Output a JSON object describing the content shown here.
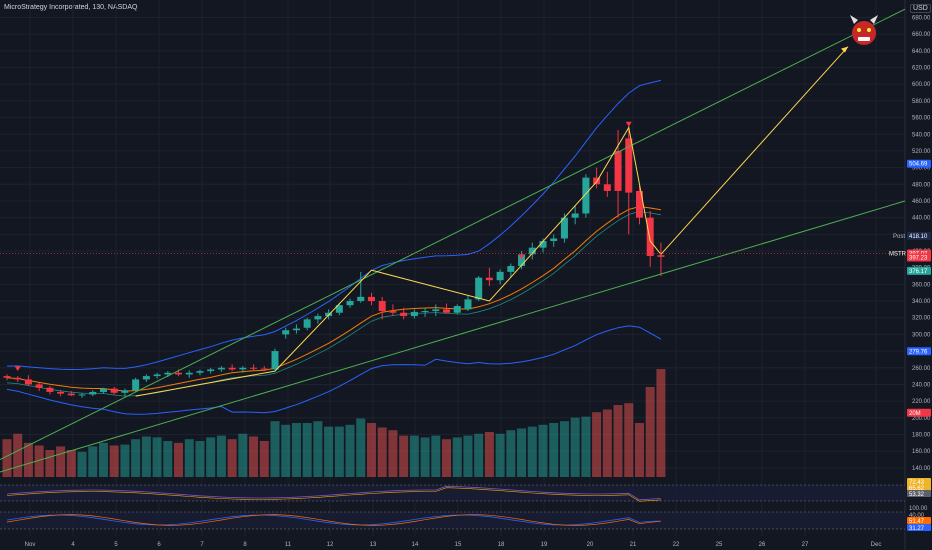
{
  "header": {
    "title": "MicroStrategy Incorporated, 130, NASDAQ",
    "currency": "USD"
  },
  "chart_data": {
    "type": "candlestick",
    "x_ticks": [
      "Nov",
      "4",
      "5",
      "6",
      "7",
      "8",
      "11",
      "12",
      "13",
      "14",
      "15",
      "18",
      "19",
      "20",
      "21",
      "22",
      "25",
      "26",
      "27",
      "Dec"
    ],
    "y_ticks": [
      140,
      160,
      180,
      200,
      220,
      240,
      260,
      280,
      300,
      320,
      340,
      360,
      380,
      400,
      420,
      440,
      460,
      480,
      500,
      520,
      540,
      560,
      580,
      600,
      620,
      640,
      660,
      680
    ],
    "ylim": [
      125,
      690
    ],
    "candles": [
      [
        250,
        252,
        245,
        248
      ],
      [
        248,
        250,
        243,
        246
      ],
      [
        246,
        251,
        238,
        240
      ],
      [
        240,
        242,
        232,
        236
      ],
      [
        236,
        238,
        228,
        231
      ],
      [
        231,
        233,
        226,
        229
      ],
      [
        229,
        232,
        226,
        227
      ],
      [
        227,
        230,
        224,
        228
      ],
      [
        228,
        233,
        226,
        231
      ],
      [
        231,
        236,
        229,
        235
      ],
      [
        235,
        237,
        228,
        230
      ],
      [
        230,
        235,
        226,
        233
      ],
      [
        233,
        248,
        231,
        246
      ],
      [
        246,
        252,
        243,
        250
      ],
      [
        250,
        254,
        247,
        252
      ],
      [
        252,
        256,
        249,
        254
      ],
      [
        254,
        258,
        250,
        252
      ],
      [
        252,
        257,
        248,
        254
      ],
      [
        254,
        258,
        251,
        256
      ],
      [
        256,
        260,
        253,
        258
      ],
      [
        258,
        262,
        255,
        260
      ],
      [
        260,
        264,
        256,
        258
      ],
      [
        258,
        262,
        254,
        260
      ],
      [
        260,
        264,
        257,
        259
      ],
      [
        259,
        262,
        256,
        258
      ],
      [
        258,
        283,
        257,
        280
      ],
      [
        300,
        308,
        295,
        305
      ],
      [
        305,
        312,
        301,
        307
      ],
      [
        308,
        320,
        305,
        318
      ],
      [
        318,
        325,
        313,
        322
      ],
      [
        322,
        330,
        318,
        326
      ],
      [
        326,
        338,
        323,
        335
      ],
      [
        335,
        343,
        332,
        340
      ],
      [
        340,
        375,
        338,
        345
      ],
      [
        345,
        350,
        335,
        340
      ],
      [
        340,
        345,
        318,
        328
      ],
      [
        328,
        336,
        322,
        326
      ],
      [
        326,
        332,
        318,
        322
      ],
      [
        322,
        330,
        319,
        327
      ],
      [
        327,
        332,
        321,
        328
      ],
      [
        328,
        336,
        322,
        330
      ],
      [
        330,
        337,
        325,
        326
      ],
      [
        326,
        336,
        324,
        334
      ],
      [
        330,
        346,
        328,
        342
      ],
      [
        342,
        370,
        340,
        368
      ],
      [
        368,
        380,
        358,
        365
      ],
      [
        365,
        378,
        360,
        375
      ],
      [
        375,
        385,
        368,
        382
      ],
      [
        382,
        400,
        378,
        396
      ],
      [
        396,
        410,
        390,
        404
      ],
      [
        404,
        415,
        398,
        412
      ],
      [
        412,
        420,
        405,
        415
      ],
      [
        415,
        445,
        410,
        440
      ],
      [
        440,
        455,
        432,
        445
      ],
      [
        445,
        492,
        440,
        488
      ],
      [
        488,
        500,
        475,
        480
      ],
      [
        480,
        495,
        465,
        472
      ],
      [
        520,
        545,
        440,
        472
      ],
      [
        535,
        552,
        420,
        470
      ],
      [
        472,
        478,
        432,
        440
      ],
      [
        440,
        448,
        381,
        394
      ],
      [
        395,
        410,
        370,
        393
      ]
    ],
    "volume": [
      42,
      48,
      38,
      35,
      30,
      34,
      30,
      28,
      34,
      38,
      35,
      36,
      42,
      45,
      44,
      40,
      38,
      42,
      40,
      44,
      46,
      42,
      48,
      45,
      40,
      62,
      58,
      60,
      60,
      62,
      56,
      56,
      58,
      65,
      60,
      55,
      52,
      46,
      46,
      44,
      46,
      42,
      44,
      46,
      48,
      50,
      48,
      52,
      54,
      56,
      58,
      60,
      62,
      66,
      67,
      72,
      75,
      80,
      82,
      60,
      100,
      120
    ],
    "price_labels": {
      "upper_band": "504.69",
      "post_label": "Post",
      "post": "418.10",
      "symbol": "MSTR",
      "last": "397.07",
      "last2": "397.23",
      "level": "376.17",
      "lower_band": "279.76",
      "volume": "20M"
    },
    "osc1_labels": [
      "72.43",
      "65.62",
      "53.32"
    ],
    "osc2_labels": [
      "100.00",
      "40.00",
      "51.47",
      "31.27"
    ]
  }
}
